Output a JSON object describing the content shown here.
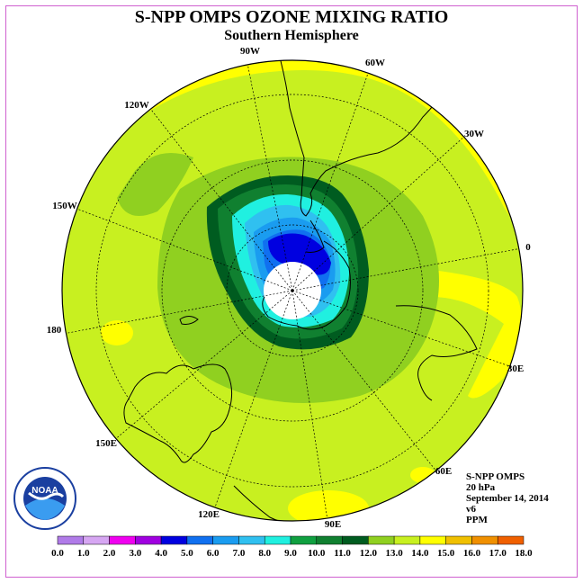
{
  "title": "S-NPP OMPS OZONE MIXING RATIO",
  "subtitle": "Southern Hemisphere",
  "longitude_labels": [
    "90W",
    "60W",
    "30W",
    "0",
    "30E",
    "60E",
    "90E",
    "120E",
    "150E",
    "180",
    "150W",
    "120W"
  ],
  "info": {
    "instrument": "S-NPP OMPS",
    "pressure": "20 hPa",
    "date": "September 14, 2014",
    "version": "v6",
    "units": "PPM"
  },
  "logo_text": "NOAA",
  "colorbar": {
    "ticks": [
      "0.0",
      "1.0",
      "2.0",
      "3.0",
      "4.0",
      "5.0",
      "6.0",
      "7.0",
      "8.0",
      "9.0",
      "10.0",
      "11.0",
      "12.0",
      "13.0",
      "14.0",
      "15.0",
      "16.0",
      "17.0",
      "18.0"
    ],
    "colors": [
      "#b07be8",
      "#d6a6f2",
      "#f000f0",
      "#a000e0",
      "#0000e0",
      "#1070f0",
      "#1a9cf0",
      "#30c0f0",
      "#20f0e0",
      "#10a040",
      "#108030",
      "#005c20",
      "#90d020",
      "#c8f020",
      "#ffff00",
      "#f0c000",
      "#f09000",
      "#f06000",
      "#f00000",
      "#805040"
    ]
  }
}
